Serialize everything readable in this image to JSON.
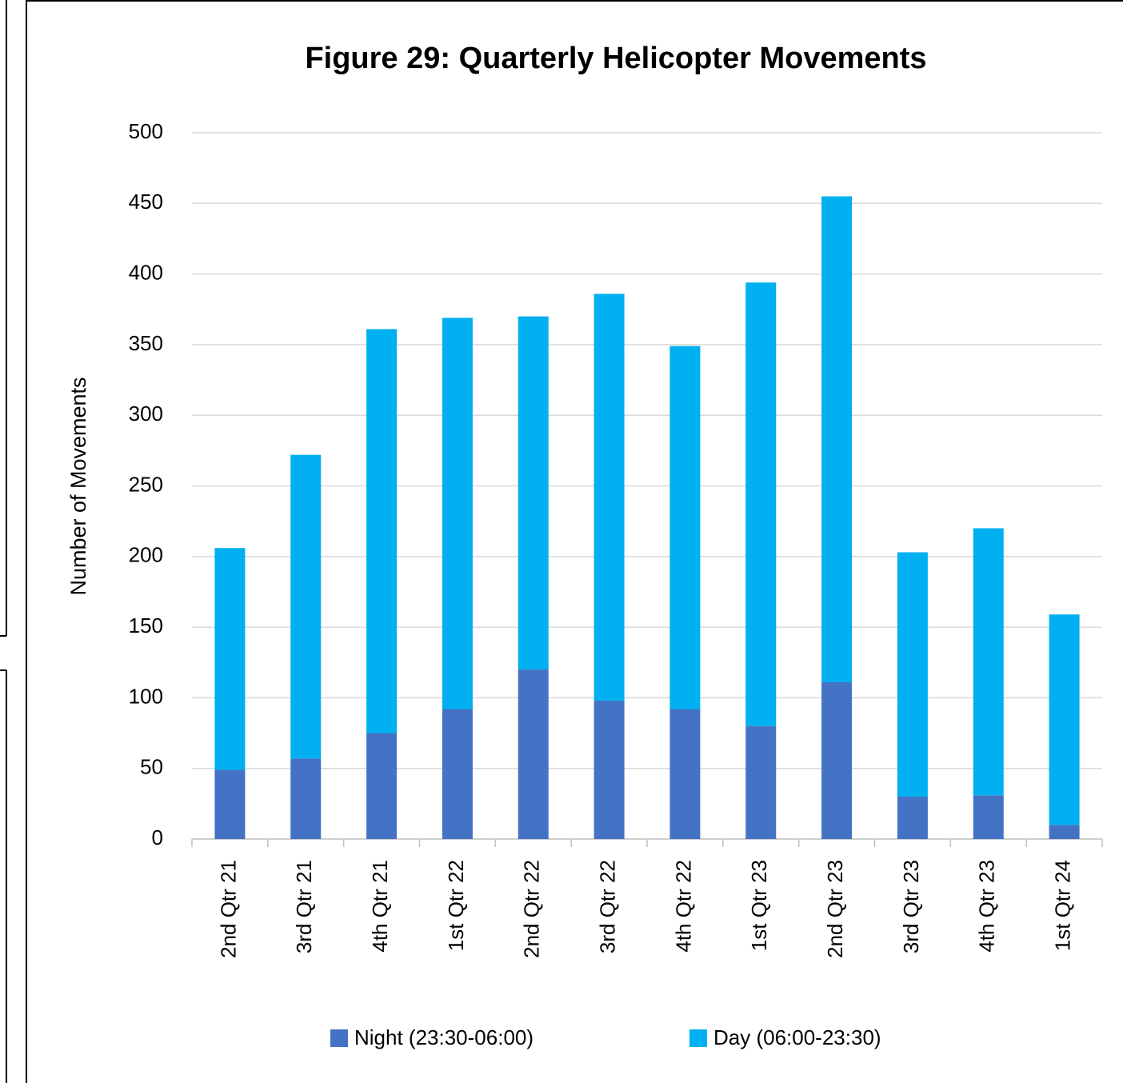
{
  "chart_data": {
    "type": "stacked_bar",
    "title": "Figure 29: Quarterly Helicopter Movements",
    "y_label": "Number of Movements",
    "categories": [
      "2nd Qtr 21",
      "3rd Qtr 21",
      "4th Qtr 21",
      "1st Qtr 22",
      "2nd Qtr 22",
      "3rd Qtr 22",
      "4th Qtr 22",
      "1st Qtr 23",
      "2nd Qtr 23",
      "3rd Qtr 23",
      "4th Qtr 23",
      "1st Qtr 24"
    ],
    "series": [
      {
        "name": "Night (23:30-06:00)",
        "color": "#4472c4",
        "values": [
          49,
          57,
          75,
          92,
          120,
          98,
          92,
          80,
          111,
          30,
          31,
          10
        ]
      },
      {
        "name": "Day (06:00-23:30)",
        "color": "#00b0f0",
        "values": [
          157,
          215,
          286,
          277,
          250,
          288,
          257,
          314,
          344,
          173,
          189,
          149
        ]
      }
    ],
    "ylim": [
      0,
      500
    ],
    "yticks": [
      0,
      50,
      100,
      150,
      200,
      250,
      300,
      350,
      400,
      450,
      500
    ],
    "grid": true,
    "legend": "bottom"
  }
}
